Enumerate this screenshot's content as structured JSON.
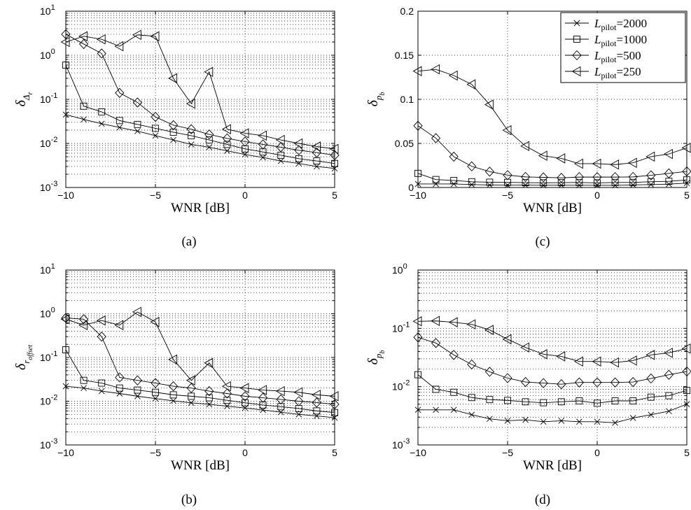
{
  "chart_data": [
    {
      "id": "a",
      "type": "line",
      "caption": "(a)",
      "xlabel": "WNR [dB]",
      "ylabel": {
        "symbol": "δ",
        "sub": "Δ",
        "subsub": "r"
      },
      "yscale": "log",
      "xlim": [
        -10,
        5
      ],
      "ylim": [
        0.001,
        10
      ],
      "xticks": [
        -10,
        -5,
        0,
        5
      ],
      "yticks": [
        {
          "value": 0.001,
          "base": "10",
          "exp": "-3"
        },
        {
          "value": 0.01,
          "base": "10",
          "exp": "-2"
        },
        {
          "value": 0.1,
          "base": "10",
          "exp": "-1"
        },
        {
          "value": 1,
          "base": "10",
          "exp": "0"
        },
        {
          "value": 10,
          "base": "10",
          "exp": "1"
        }
      ],
      "grid": true,
      "x": [
        -10,
        -9,
        -8,
        -7,
        -6,
        -5,
        -4,
        -3,
        -2,
        -1,
        0,
        1,
        2,
        3,
        4,
        5
      ],
      "series": [
        {
          "marker": "x",
          "values": [
            0.045,
            0.035,
            0.028,
            0.023,
            0.019,
            0.015,
            0.012,
            0.0095,
            0.0082,
            0.0068,
            0.0056,
            0.0048,
            0.004,
            0.0035,
            0.003,
            0.0027
          ]
        },
        {
          "marker": "square",
          "values": [
            0.6,
            0.07,
            0.052,
            0.033,
            0.027,
            0.022,
            0.018,
            0.015,
            0.012,
            0.0095,
            0.0075,
            0.0064,
            0.0054,
            0.0045,
            0.004,
            0.0035
          ]
        },
        {
          "marker": "diamond",
          "values": [
            3.0,
            1.8,
            1.1,
            0.14,
            0.085,
            0.04,
            0.026,
            0.021,
            0.016,
            0.013,
            0.011,
            0.0095,
            0.0082,
            0.007,
            0.0062,
            0.0054
          ]
        },
        {
          "marker": "triangle-left",
          "values": [
            2.0,
            2.7,
            2.3,
            1.6,
            2.9,
            2.7,
            0.3,
            0.08,
            0.42,
            0.021,
            0.017,
            0.015,
            0.012,
            0.01,
            0.0085,
            0.0075
          ]
        }
      ]
    },
    {
      "id": "b",
      "type": "line",
      "caption": "(b)",
      "xlabel": "WNR [dB]",
      "ylabel": {
        "symbol": "δ",
        "sub": "r",
        "subsub": "offset"
      },
      "yscale": "log",
      "xlim": [
        -10,
        5
      ],
      "ylim": [
        0.001,
        10
      ],
      "xticks": [
        -10,
        -5,
        0,
        5
      ],
      "yticks": [
        {
          "value": 0.001,
          "base": "10",
          "exp": "-3"
        },
        {
          "value": 0.01,
          "base": "10",
          "exp": "-2"
        },
        {
          "value": 0.1,
          "base": "10",
          "exp": "-1"
        },
        {
          "value": 1,
          "base": "10",
          "exp": "0"
        },
        {
          "value": 10,
          "base": "10",
          "exp": "1"
        }
      ],
      "grid": true,
      "x": [
        -10,
        -9,
        -8,
        -7,
        -6,
        -5,
        -4,
        -3,
        -2,
        -1,
        0,
        1,
        2,
        3,
        4,
        5
      ],
      "series": [
        {
          "marker": "x",
          "values": [
            0.022,
            0.02,
            0.017,
            0.015,
            0.013,
            0.0115,
            0.0102,
            0.0092,
            0.0085,
            0.0077,
            0.007,
            0.0063,
            0.0056,
            0.005,
            0.0046,
            0.0042
          ]
        },
        {
          "marker": "square",
          "values": [
            0.15,
            0.03,
            0.026,
            0.02,
            0.018,
            0.016,
            0.014,
            0.013,
            0.012,
            0.0105,
            0.0092,
            0.0082,
            0.0075,
            0.0068,
            0.006,
            0.0055
          ]
        },
        {
          "marker": "diamond",
          "values": [
            0.8,
            0.75,
            0.3,
            0.035,
            0.03,
            0.026,
            0.022,
            0.02,
            0.017,
            0.015,
            0.013,
            0.012,
            0.011,
            0.01,
            0.0093,
            0.0085
          ]
        },
        {
          "marker": "triangle-left",
          "values": [
            0.75,
            0.55,
            0.7,
            0.55,
            1.1,
            0.65,
            0.09,
            0.03,
            0.075,
            0.022,
            0.02,
            0.018,
            0.017,
            0.016,
            0.014,
            0.013
          ]
        }
      ]
    },
    {
      "id": "c",
      "type": "line",
      "caption": "(c)",
      "xlabel": "WNR [dB]",
      "ylabel": {
        "symbol": "δ",
        "sub": "p",
        "subsub": "b"
      },
      "yscale": "linear",
      "xlim": [
        -10,
        5
      ],
      "ylim": [
        0,
        0.2
      ],
      "xticks": [
        -10,
        -5,
        0,
        5
      ],
      "yticks": [
        {
          "value": 0,
          "label": "0"
        },
        {
          "value": 0.05,
          "label": "0.05"
        },
        {
          "value": 0.1,
          "label": "0.1"
        },
        {
          "value": 0.15,
          "label": "0.15"
        },
        {
          "value": 0.2,
          "label": "0.2"
        }
      ],
      "grid": true,
      "legend": {
        "placement": "top-right",
        "entries": [
          {
            "marker": "x",
            "name": "L",
            "sub": "pilot",
            "value": "=2000"
          },
          {
            "marker": "square",
            "name": "L",
            "sub": "pilot",
            "value": "=1000"
          },
          {
            "marker": "diamond",
            "name": "L",
            "sub": "pilot",
            "value": "=500"
          },
          {
            "marker": "triangle-left",
            "name": "L",
            "sub": "pilot",
            "value": "=250"
          }
        ]
      },
      "x": [
        -10,
        -9,
        -8,
        -7,
        -6,
        -5,
        -4,
        -3,
        -2,
        -1,
        0,
        1,
        2,
        3,
        4,
        5
      ],
      "series": [
        {
          "marker": "x",
          "values": [
            0.004,
            0.004,
            0.004,
            0.0033,
            0.0028,
            0.0026,
            0.0027,
            0.0025,
            0.0026,
            0.0025,
            0.0025,
            0.0024,
            0.0029,
            0.0033,
            0.0038,
            0.005
          ]
        },
        {
          "marker": "square",
          "values": [
            0.016,
            0.009,
            0.008,
            0.0065,
            0.006,
            0.0058,
            0.0055,
            0.0053,
            0.0055,
            0.0057,
            0.0052,
            0.0057,
            0.0057,
            0.0066,
            0.007,
            0.0086
          ]
        },
        {
          "marker": "diamond",
          "values": [
            0.07,
            0.056,
            0.035,
            0.024,
            0.018,
            0.014,
            0.012,
            0.0115,
            0.011,
            0.0118,
            0.0118,
            0.0118,
            0.012,
            0.0138,
            0.016,
            0.0182
          ]
        },
        {
          "marker": "triangle-left",
          "values": [
            0.132,
            0.134,
            0.127,
            0.117,
            0.094,
            0.065,
            0.047,
            0.036,
            0.033,
            0.027,
            0.027,
            0.026,
            0.028,
            0.035,
            0.038,
            0.045
          ]
        }
      ]
    },
    {
      "id": "d",
      "type": "line",
      "caption": "(d)",
      "xlabel": "WNR [dB]",
      "ylabel": {
        "symbol": "δ",
        "sub": "p",
        "subsub": "b"
      },
      "yscale": "log",
      "xlim": [
        -10,
        5
      ],
      "ylim": [
        0.001,
        1
      ],
      "xticks": [
        -10,
        -5,
        0,
        5
      ],
      "yticks": [
        {
          "value": 0.001,
          "base": "10",
          "exp": "-3"
        },
        {
          "value": 0.01,
          "base": "10",
          "exp": "-2"
        },
        {
          "value": 0.1,
          "base": "10",
          "exp": "-1"
        },
        {
          "value": 1,
          "base": "10",
          "exp": "0"
        }
      ],
      "grid": true,
      "x": [
        -10,
        -9,
        -8,
        -7,
        -6,
        -5,
        -4,
        -3,
        -2,
        -1,
        0,
        1,
        2,
        3,
        4,
        5
      ],
      "series": [
        {
          "marker": "x",
          "values": [
            0.004,
            0.004,
            0.004,
            0.0033,
            0.0028,
            0.0026,
            0.0027,
            0.0025,
            0.0026,
            0.0025,
            0.0025,
            0.0024,
            0.0029,
            0.0033,
            0.0038,
            0.005
          ]
        },
        {
          "marker": "square",
          "values": [
            0.016,
            0.009,
            0.008,
            0.0065,
            0.006,
            0.0058,
            0.0055,
            0.0053,
            0.0055,
            0.0057,
            0.0052,
            0.0057,
            0.0057,
            0.0066,
            0.007,
            0.0086
          ]
        },
        {
          "marker": "diamond",
          "values": [
            0.07,
            0.056,
            0.035,
            0.024,
            0.018,
            0.014,
            0.012,
            0.0115,
            0.011,
            0.0118,
            0.0118,
            0.0118,
            0.012,
            0.0138,
            0.016,
            0.0182
          ]
        },
        {
          "marker": "triangle-left",
          "values": [
            0.132,
            0.134,
            0.127,
            0.117,
            0.094,
            0.065,
            0.047,
            0.036,
            0.033,
            0.027,
            0.027,
            0.026,
            0.028,
            0.035,
            0.038,
            0.045
          ]
        }
      ]
    }
  ]
}
